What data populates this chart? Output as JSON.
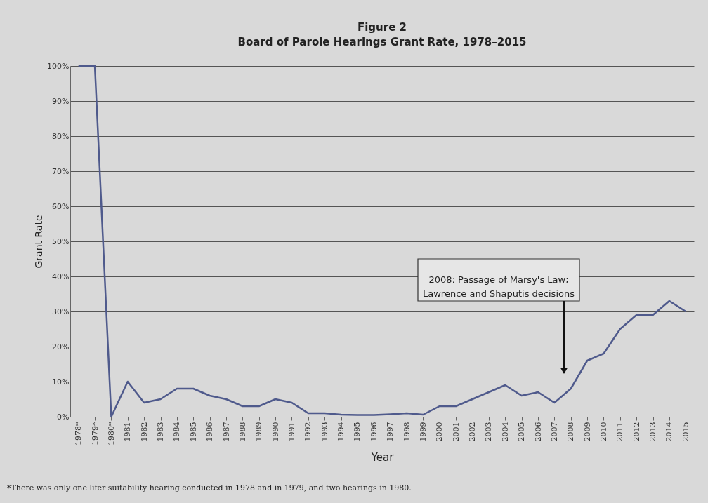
{
  "chart_data": {
    "type": "line",
    "title": "Figure 2",
    "subtitle": "Board of Parole Hearings Grant Rate, 1978–2015",
    "xlabel": "Year",
    "ylabel": "Grant Rate",
    "categories": [
      "1978*",
      "1979*",
      "1980*",
      "1981",
      "1982",
      "1983",
      "1984",
      "1985",
      "1986",
      "1987",
      "1988",
      "1989",
      "1990",
      "1991",
      "1992",
      "1993",
      "1994",
      "1995",
      "1996",
      "1997",
      "1998",
      "1999",
      "2000",
      "2001",
      "2002",
      "2003",
      "2004",
      "2005",
      "2006",
      "2007",
      "2008",
      "2009",
      "2010",
      "2011",
      "2012",
      "2013",
      "2014",
      "2015"
    ],
    "series": [
      {
        "color": "#4f5a8c",
        "values": [
          100,
          100,
          0,
          10,
          4,
          5,
          8,
          8,
          6,
          5,
          3,
          3,
          5,
          4,
          1,
          1,
          0.6,
          0.5,
          0.5,
          0.7,
          1,
          0.6,
          3,
          3,
          5,
          7,
          9,
          6,
          7,
          4,
          8,
          16,
          18,
          25,
          29,
          29,
          33,
          30
        ]
      }
    ],
    "ylim": [
      0,
      100
    ],
    "yticks": [
      {
        "value": 0,
        "label": "0%"
      },
      {
        "value": 10,
        "label": "10%"
      },
      {
        "value": 20,
        "label": "20%"
      },
      {
        "value": 30,
        "label": "30%"
      },
      {
        "value": 40,
        "label": "40%"
      },
      {
        "value": 50,
        "label": "50%"
      },
      {
        "value": 60,
        "label": "60%"
      },
      {
        "value": 70,
        "label": "70%"
      },
      {
        "value": 80,
        "label": "80%"
      },
      {
        "value": 90,
        "label": "90%"
      },
      {
        "value": 100,
        "label": "100%"
      }
    ],
    "grid": "y",
    "annotations": [
      "2008: Passage of Marsy's Law; Lawrence and Shaputis decisions",
      "*There was only one lifer suitability hearing conducted in 1978 and in 1979, and two hearings in 1980."
    ]
  }
}
